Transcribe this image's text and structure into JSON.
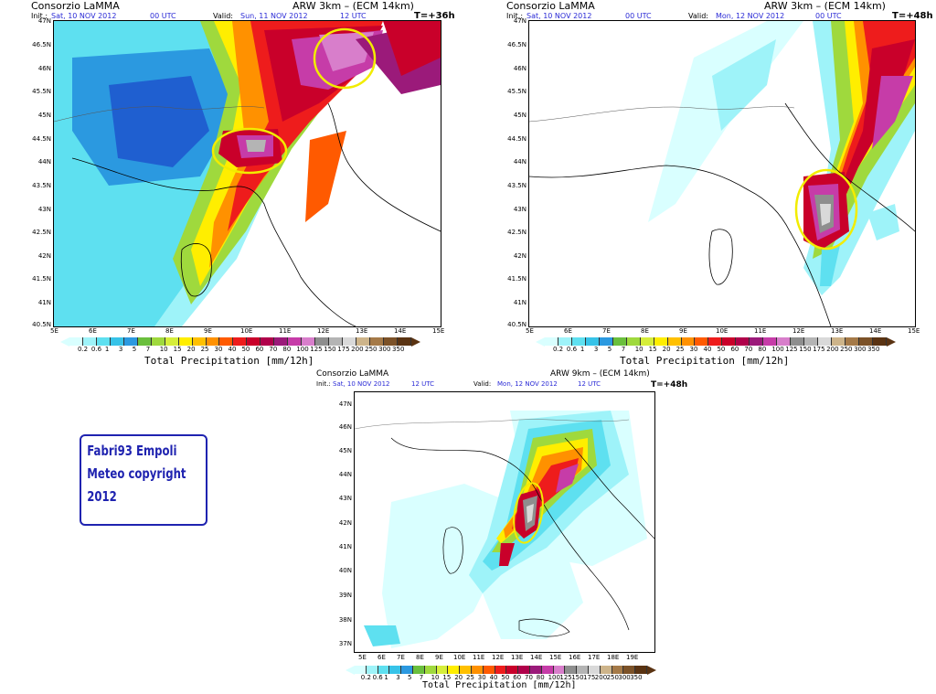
{
  "palette": [
    "#d9ffff",
    "#9ef3f9",
    "#5ee0f0",
    "#37c3e8",
    "#2b99e0",
    "#6abf3d",
    "#9fd93d",
    "#d6ee3a",
    "#ffee00",
    "#ffc000",
    "#ff9100",
    "#ff5a00",
    "#ee1c1c",
    "#c9002a",
    "#b0004a",
    "#9b1a7a",
    "#c63ca8",
    "#d87ecb",
    "#8e8e8e",
    "#b4b4b4",
    "#d9d9d9",
    "#cdb48a",
    "#a57a48",
    "#7c5228",
    "#5a3312"
  ],
  "colorbar_labels": [
    "0.2",
    "0.6",
    "1",
    "3",
    "5",
    "7",
    "10",
    "15",
    "20",
    "25",
    "30",
    "40",
    "50",
    "60",
    "70",
    "80",
    "100",
    "125",
    "150",
    "175",
    "200",
    "250",
    "300",
    "350"
  ],
  "colorbar_title": "Total Precipitation [mm/12h]",
  "highlight_color": "#f2ec00",
  "panels": [
    {
      "institution": "Consorzio LaMMA",
      "model": "ARW 3km – (ECM 14km)",
      "init_label": "Init.:",
      "init_value": "Sat, 10 NOV 2012",
      "init_time": "00 UTC",
      "valid_label": "Valid:",
      "valid_value": "Sun, 11 NOV 2012",
      "valid_time": "12 UTC",
      "lead": "T=+36h",
      "lat_labels": [
        "47N",
        "46.5N",
        "46N",
        "45.5N",
        "45N",
        "44.5N",
        "44N",
        "43.5N",
        "43N",
        "42.5N",
        "42N",
        "41.5N",
        "41N",
        "40.5N"
      ],
      "lon_labels": [
        "5E",
        "6E",
        "7E",
        "8E",
        "9E",
        "10E",
        "11E",
        "12E",
        "13E",
        "14E",
        "15E"
      ]
    },
    {
      "institution": "Consorzio LaMMA",
      "model": "ARW 3km – (ECM 14km)",
      "init_label": "Init.:",
      "init_value": "Sat, 10 NOV 2012",
      "init_time": "00 UTC",
      "valid_label": "Valid:",
      "valid_value": "Mon, 12 NOV 2012",
      "valid_time": "00 UTC",
      "lead": "T=+48h",
      "lat_labels": [
        "47N",
        "46.5N",
        "46N",
        "45.5N",
        "45N",
        "44.5N",
        "44N",
        "43.5N",
        "43N",
        "42.5N",
        "42N",
        "41.5N",
        "41N",
        "40.5N"
      ],
      "lon_labels": [
        "5E",
        "6E",
        "7E",
        "8E",
        "9E",
        "10E",
        "11E",
        "12E",
        "13E",
        "14E",
        "15E"
      ]
    },
    {
      "institution": "Consorzio LaMMA",
      "model": "ARW 9km – (ECM 14km)",
      "init_label": "Init.:",
      "init_value": "Sat, 10 NOV 2012",
      "init_time": "12 UTC",
      "valid_label": "Valid:",
      "valid_value": "Mon, 12 NOV 2012",
      "valid_time": "12 UTC",
      "lead": "T=+48h",
      "lat_labels": [
        "47N",
        "46N",
        "45N",
        "44N",
        "43N",
        "42N",
        "41N",
        "40N",
        "39N",
        "38N",
        "37N"
      ],
      "lon_labels": [
        "5E",
        "6E",
        "7E",
        "8E",
        "9E",
        "10E",
        "11E",
        "12E",
        "13E",
        "14E",
        "15E",
        "16E",
        "17E",
        "18E",
        "19E"
      ]
    }
  ],
  "credit": {
    "line1": "Fabri93 Empoli",
    "line2": "Meteo copyright",
    "line3": "2012"
  }
}
